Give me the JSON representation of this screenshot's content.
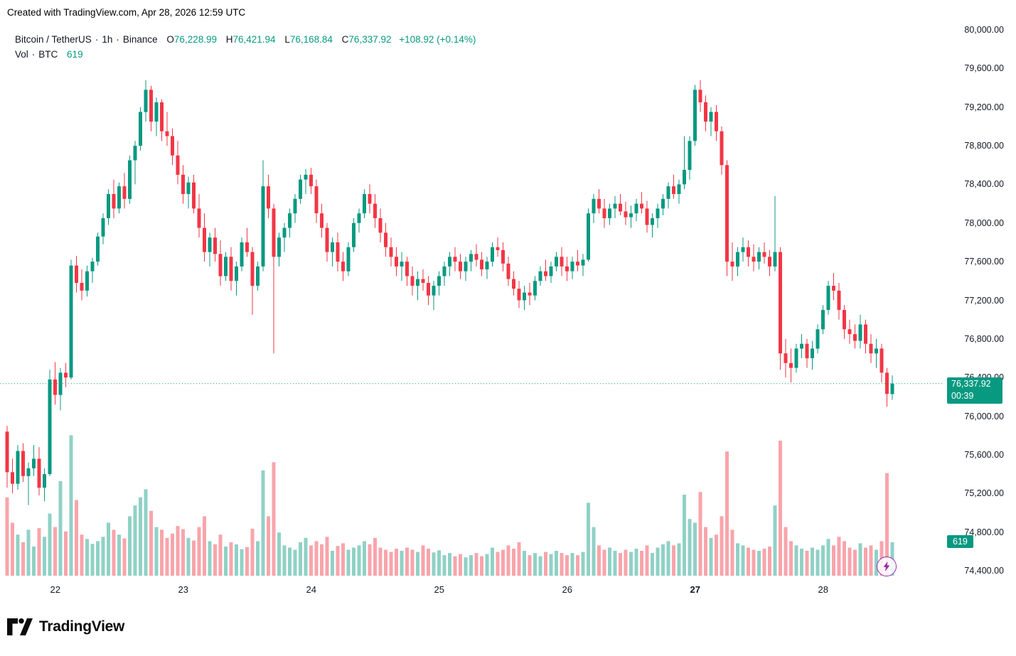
{
  "header": {
    "created_with": "Created with TradingView.com, Apr 28, 2026 12:59 UTC"
  },
  "legend": {
    "symbol": "Bitcoin / TetherUS",
    "separator": "·",
    "interval": "1h",
    "exchange": "Binance",
    "ohlc": [
      {
        "label": "O",
        "value": "76,228.99"
      },
      {
        "label": "H",
        "value": "76,421.94"
      },
      {
        "label": "L",
        "value": "76,168.84"
      },
      {
        "label": "C",
        "value": "76,337.92"
      }
    ],
    "change": "+108.92 (+0.14%)",
    "vol_label": "Vol",
    "vol_symbol": "BTC",
    "vol_value": "619"
  },
  "price_axis": {
    "labels": [
      "80,000.00",
      "79,600.00",
      "79,200.00",
      "78,800.00",
      "78,400.00",
      "78,000.00",
      "77,600.00",
      "77,200.00",
      "76,800.00",
      "76,400.00",
      "76,000.00",
      "75,600.00",
      "75,200.00",
      "74,800.00",
      "74,400.00"
    ]
  },
  "time_axis": {
    "labels": [
      {
        "text": "22",
        "candle": 9,
        "bold": false
      },
      {
        "text": "23",
        "candle": 33,
        "bold": false
      },
      {
        "text": "24",
        "candle": 57,
        "bold": false
      },
      {
        "text": "25",
        "candle": 81,
        "bold": false
      },
      {
        "text": "26",
        "candle": 105,
        "bold": false
      },
      {
        "text": "27",
        "candle": 129,
        "bold": true
      },
      {
        "text": "28",
        "candle": 153,
        "bold": false
      }
    ]
  },
  "price_badge": {
    "price": "76,337.92",
    "countdown": "00:39"
  },
  "volume_badge": "619",
  "footer": {
    "brand": "TradingView"
  },
  "colors": {
    "up": "#089981",
    "down": "#f23645",
    "vol_up": "#08998173",
    "vol_down": "#f2364573",
    "badge": "#089981",
    "bolt": "#9c27b0",
    "text": "#131722"
  },
  "chart_data": {
    "type": "candlestick",
    "title": "Bitcoin / TetherUS · 1h · Binance",
    "interval": "1h",
    "y_range": [
      74400,
      80000
    ],
    "y_tick_step": 400,
    "x_day_labels": [
      "22",
      "23",
      "24",
      "25",
      "26",
      "27",
      "28"
    ],
    "legend_note": "volume pane at bottom, colored by candle direction",
    "columns": [
      "open",
      "high",
      "low",
      "close",
      "volume_btc"
    ],
    "current": {
      "open": 76228.99,
      "high": 76421.94,
      "low": 76168.84,
      "close": 76337.92,
      "change": 108.92,
      "change_pct": 0.14,
      "volume": 619,
      "countdown": "00:39"
    },
    "candles": [
      [
        75840,
        75900,
        75260,
        75420,
        1450
      ],
      [
        75420,
        75560,
        75200,
        75300,
        980
      ],
      [
        75300,
        75700,
        75240,
        75640,
        760
      ],
      [
        75640,
        75720,
        75320,
        75380,
        620
      ],
      [
        75380,
        75520,
        75080,
        75460,
        850
      ],
      [
        75460,
        75700,
        75380,
        75560,
        540
      ],
      [
        75560,
        75680,
        75180,
        75260,
        880
      ],
      [
        75260,
        75460,
        75120,
        75400,
        720
      ],
      [
        75400,
        76480,
        75380,
        76380,
        1150
      ],
      [
        76380,
        76560,
        76120,
        76220,
        900
      ],
      [
        76220,
        76500,
        76060,
        76450,
        1750
      ],
      [
        76450,
        76550,
        76300,
        76400,
        820
      ],
      [
        76400,
        77620,
        76380,
        77560,
        2600
      ],
      [
        77560,
        77660,
        77280,
        77380,
        1400
      ],
      [
        77380,
        77520,
        77200,
        77300,
        760
      ],
      [
        77300,
        77560,
        77240,
        77500,
        680
      ],
      [
        77500,
        77640,
        77380,
        77600,
        590
      ],
      [
        77600,
        77900,
        77560,
        77860,
        640
      ],
      [
        77860,
        78100,
        77780,
        78050,
        720
      ],
      [
        78050,
        78350,
        77980,
        78300,
        980
      ],
      [
        78300,
        78450,
        78050,
        78150,
        850
      ],
      [
        78150,
        78420,
        78100,
        78380,
        760
      ],
      [
        78380,
        78520,
        78150,
        78250,
        690
      ],
      [
        78250,
        78700,
        78200,
        78650,
        1100
      ],
      [
        78650,
        78850,
        78400,
        78800,
        1300
      ],
      [
        78800,
        79200,
        78750,
        79150,
        1450
      ],
      [
        79150,
        79480,
        79050,
        79380,
        1600
      ],
      [
        79380,
        79420,
        78950,
        79050,
        1200
      ],
      [
        79050,
        79300,
        78900,
        79250,
        900
      ],
      [
        79250,
        79280,
        78850,
        78950,
        850
      ],
      [
        78950,
        79150,
        78800,
        78900,
        700
      ],
      [
        78900,
        78980,
        78600,
        78700,
        780
      ],
      [
        78700,
        78850,
        78400,
        78500,
        920
      ],
      [
        78500,
        78600,
        78200,
        78300,
        860
      ],
      [
        78300,
        78480,
        78150,
        78420,
        700
      ],
      [
        78420,
        78500,
        78100,
        78150,
        650
      ],
      [
        78150,
        78300,
        77850,
        77950,
        900
      ],
      [
        77950,
        78100,
        77600,
        77700,
        1100
      ],
      [
        77700,
        77900,
        77550,
        77850,
        640
      ],
      [
        77850,
        77950,
        77600,
        77680,
        580
      ],
      [
        77680,
        77820,
        77350,
        77450,
        760
      ],
      [
        77450,
        77700,
        77400,
        77650,
        540
      ],
      [
        77650,
        77750,
        77300,
        77400,
        620
      ],
      [
        77400,
        77600,
        77250,
        77550,
        580
      ],
      [
        77550,
        77850,
        77500,
        77800,
        490
      ],
      [
        77800,
        77950,
        77650,
        77700,
        530
      ],
      [
        77700,
        77750,
        77050,
        77350,
        870
      ],
      [
        77350,
        77600,
        77300,
        77550,
        640
      ],
      [
        77550,
        78650,
        77500,
        78380,
        1950
      ],
      [
        78380,
        78500,
        78050,
        78150,
        1100
      ],
      [
        78150,
        78200,
        76650,
        77650,
        2100
      ],
      [
        77650,
        77900,
        77550,
        77850,
        800
      ],
      [
        77850,
        78000,
        77700,
        77950,
        560
      ],
      [
        77950,
        78150,
        77850,
        78100,
        520
      ],
      [
        78100,
        78300,
        78000,
        78250,
        480
      ],
      [
        78250,
        78500,
        78200,
        78450,
        620
      ],
      [
        78450,
        78560,
        78300,
        78500,
        700
      ],
      [
        78500,
        78570,
        78300,
        78380,
        560
      ],
      [
        78380,
        78450,
        78000,
        78100,
        640
      ],
      [
        78100,
        78200,
        77850,
        77950,
        580
      ],
      [
        77950,
        78000,
        77600,
        77700,
        720
      ],
      [
        77700,
        77850,
        77550,
        77800,
        460
      ],
      [
        77800,
        77900,
        77500,
        77600,
        550
      ],
      [
        77600,
        77700,
        77400,
        77500,
        600
      ],
      [
        77500,
        77800,
        77450,
        77750,
        480
      ],
      [
        77750,
        78050,
        77700,
        78000,
        520
      ],
      [
        78000,
        78150,
        77900,
        78100,
        560
      ],
      [
        78100,
        78350,
        78050,
        78300,
        640
      ],
      [
        78300,
        78400,
        78100,
        78200,
        580
      ],
      [
        78200,
        78300,
        77950,
        78050,
        700
      ],
      [
        78050,
        78150,
        77800,
        77900,
        520
      ],
      [
        77900,
        78000,
        77650,
        77750,
        480
      ],
      [
        77750,
        77850,
        77550,
        77650,
        440
      ],
      [
        77650,
        77750,
        77450,
        77550,
        500
      ],
      [
        77550,
        77700,
        77400,
        77600,
        460
      ],
      [
        77600,
        77650,
        77350,
        77450,
        520
      ],
      [
        77450,
        77550,
        77250,
        77350,
        480
      ],
      [
        77350,
        77500,
        77200,
        77420,
        440
      ],
      [
        77420,
        77520,
        77300,
        77380,
        560
      ],
      [
        77380,
        77450,
        77150,
        77250,
        500
      ],
      [
        77250,
        77400,
        77100,
        77350,
        430
      ],
      [
        77350,
        77500,
        77250,
        77450,
        470
      ],
      [
        77450,
        77600,
        77350,
        77550,
        380
      ],
      [
        77550,
        77700,
        77450,
        77650,
        420
      ],
      [
        77650,
        77750,
        77500,
        77600,
        360
      ],
      [
        77600,
        77680,
        77420,
        77500,
        400
      ],
      [
        77500,
        77650,
        77400,
        77600,
        340
      ],
      [
        77600,
        77720,
        77500,
        77680,
        380
      ],
      [
        77680,
        77780,
        77550,
        77620,
        420
      ],
      [
        77620,
        77700,
        77450,
        77520,
        360
      ],
      [
        77520,
        77650,
        77420,
        77600,
        400
      ],
      [
        77600,
        77800,
        77550,
        77750,
        520
      ],
      [
        77750,
        77850,
        77650,
        77720,
        440
      ],
      [
        77720,
        77800,
        77500,
        77580,
        480
      ],
      [
        77580,
        77650,
        77350,
        77420,
        560
      ],
      [
        77420,
        77500,
        77250,
        77320,
        500
      ],
      [
        77320,
        77400,
        77120,
        77200,
        620
      ],
      [
        77200,
        77350,
        77100,
        77280,
        460
      ],
      [
        77280,
        77380,
        77150,
        77250,
        380
      ],
      [
        77250,
        77450,
        77200,
        77400,
        420
      ],
      [
        77400,
        77550,
        77350,
        77500,
        360
      ],
      [
        77500,
        77620,
        77400,
        77450,
        440
      ],
      [
        77450,
        77600,
        77380,
        77550,
        400
      ],
      [
        77550,
        77700,
        77500,
        77650,
        460
      ],
      [
        77650,
        77750,
        77450,
        77550,
        420
      ],
      [
        77550,
        77650,
        77400,
        77500,
        380
      ],
      [
        77500,
        77650,
        77420,
        77600,
        420
      ],
      [
        77600,
        77720,
        77500,
        77560,
        380
      ],
      [
        77560,
        77680,
        77450,
        77620,
        440
      ],
      [
        77620,
        78150,
        77600,
        78100,
        1350
      ],
      [
        78100,
        78300,
        78000,
        78250,
        900
      ],
      [
        78250,
        78350,
        78100,
        78150,
        560
      ],
      [
        78150,
        78250,
        77950,
        78050,
        480
      ],
      [
        78050,
        78200,
        77980,
        78150,
        520
      ],
      [
        78150,
        78280,
        78050,
        78200,
        460
      ],
      [
        78200,
        78300,
        78080,
        78120,
        420
      ],
      [
        78120,
        78220,
        77980,
        78060,
        480
      ],
      [
        78060,
        78180,
        77950,
        78100,
        440
      ],
      [
        78100,
        78250,
        78020,
        78200,
        500
      ],
      [
        78200,
        78320,
        78100,
        78150,
        460
      ],
      [
        78150,
        78230,
        77900,
        77980,
        560
      ],
      [
        77980,
        78100,
        77850,
        78050,
        420
      ],
      [
        78050,
        78200,
        77950,
        78150,
        520
      ],
      [
        78150,
        78300,
        78080,
        78250,
        580
      ],
      [
        78250,
        78420,
        78150,
        78380,
        640
      ],
      [
        78380,
        78500,
        78250,
        78300,
        560
      ],
      [
        78300,
        78450,
        78200,
        78400,
        600
      ],
      [
        78400,
        78900,
        78350,
        78550,
        1500
      ],
      [
        78550,
        78900,
        78450,
        78850,
        1050
      ],
      [
        78850,
        79430,
        78800,
        79380,
        980
      ],
      [
        79380,
        79480,
        79150,
        79250,
        1550
      ],
      [
        79250,
        79320,
        78950,
        79050,
        900
      ],
      [
        79050,
        79200,
        78900,
        79150,
        700
      ],
      [
        79150,
        79220,
        78850,
        78950,
        760
      ],
      [
        78950,
        79000,
        78500,
        78600,
        1100
      ],
      [
        78600,
        78650,
        77450,
        77600,
        2300
      ],
      [
        77600,
        77800,
        77400,
        77550,
        850
      ],
      [
        77550,
        77750,
        77450,
        77700,
        600
      ],
      [
        77700,
        77850,
        77600,
        77750,
        560
      ],
      [
        77750,
        77820,
        77550,
        77650,
        520
      ],
      [
        77650,
        77780,
        77500,
        77600,
        480
      ],
      [
        77600,
        77750,
        77520,
        77700,
        460
      ],
      [
        77700,
        77800,
        77580,
        77650,
        500
      ],
      [
        77650,
        77720,
        77450,
        77550,
        540
      ],
      [
        77550,
        78280,
        77500,
        77700,
        1300
      ],
      [
        77700,
        77750,
        76480,
        76650,
        2500
      ],
      [
        76650,
        76800,
        76400,
        76550,
        900
      ],
      [
        76550,
        76700,
        76350,
        76500,
        640
      ],
      [
        76500,
        76750,
        76450,
        76700,
        560
      ],
      [
        76700,
        76850,
        76600,
        76750,
        500
      ],
      [
        76750,
        76800,
        76500,
        76600,
        460
      ],
      [
        76600,
        76780,
        76480,
        76700,
        520
      ],
      [
        76700,
        76950,
        76650,
        76900,
        480
      ],
      [
        76900,
        77150,
        76850,
        77100,
        560
      ],
      [
        77100,
        77400,
        77050,
        77350,
        680
      ],
      [
        77350,
        77480,
        77200,
        77300,
        560
      ],
      [
        77300,
        77380,
        77000,
        77100,
        720
      ],
      [
        77100,
        77150,
        76800,
        76900,
        640
      ],
      [
        76900,
        77000,
        76750,
        76850,
        520
      ],
      [
        76850,
        76950,
        76700,
        76780,
        480
      ],
      [
        76780,
        77050,
        76700,
        76950,
        600
      ],
      [
        76950,
        77000,
        76650,
        76750,
        520
      ],
      [
        76750,
        76850,
        76550,
        76650,
        560
      ],
      [
        76650,
        76800,
        76500,
        76700,
        480
      ],
      [
        76700,
        76750,
        76350,
        76450,
        640
      ],
      [
        76450,
        76500,
        76100,
        76230,
        1900
      ],
      [
        76228.99,
        76421.94,
        76168.84,
        76337.92,
        619
      ]
    ]
  }
}
